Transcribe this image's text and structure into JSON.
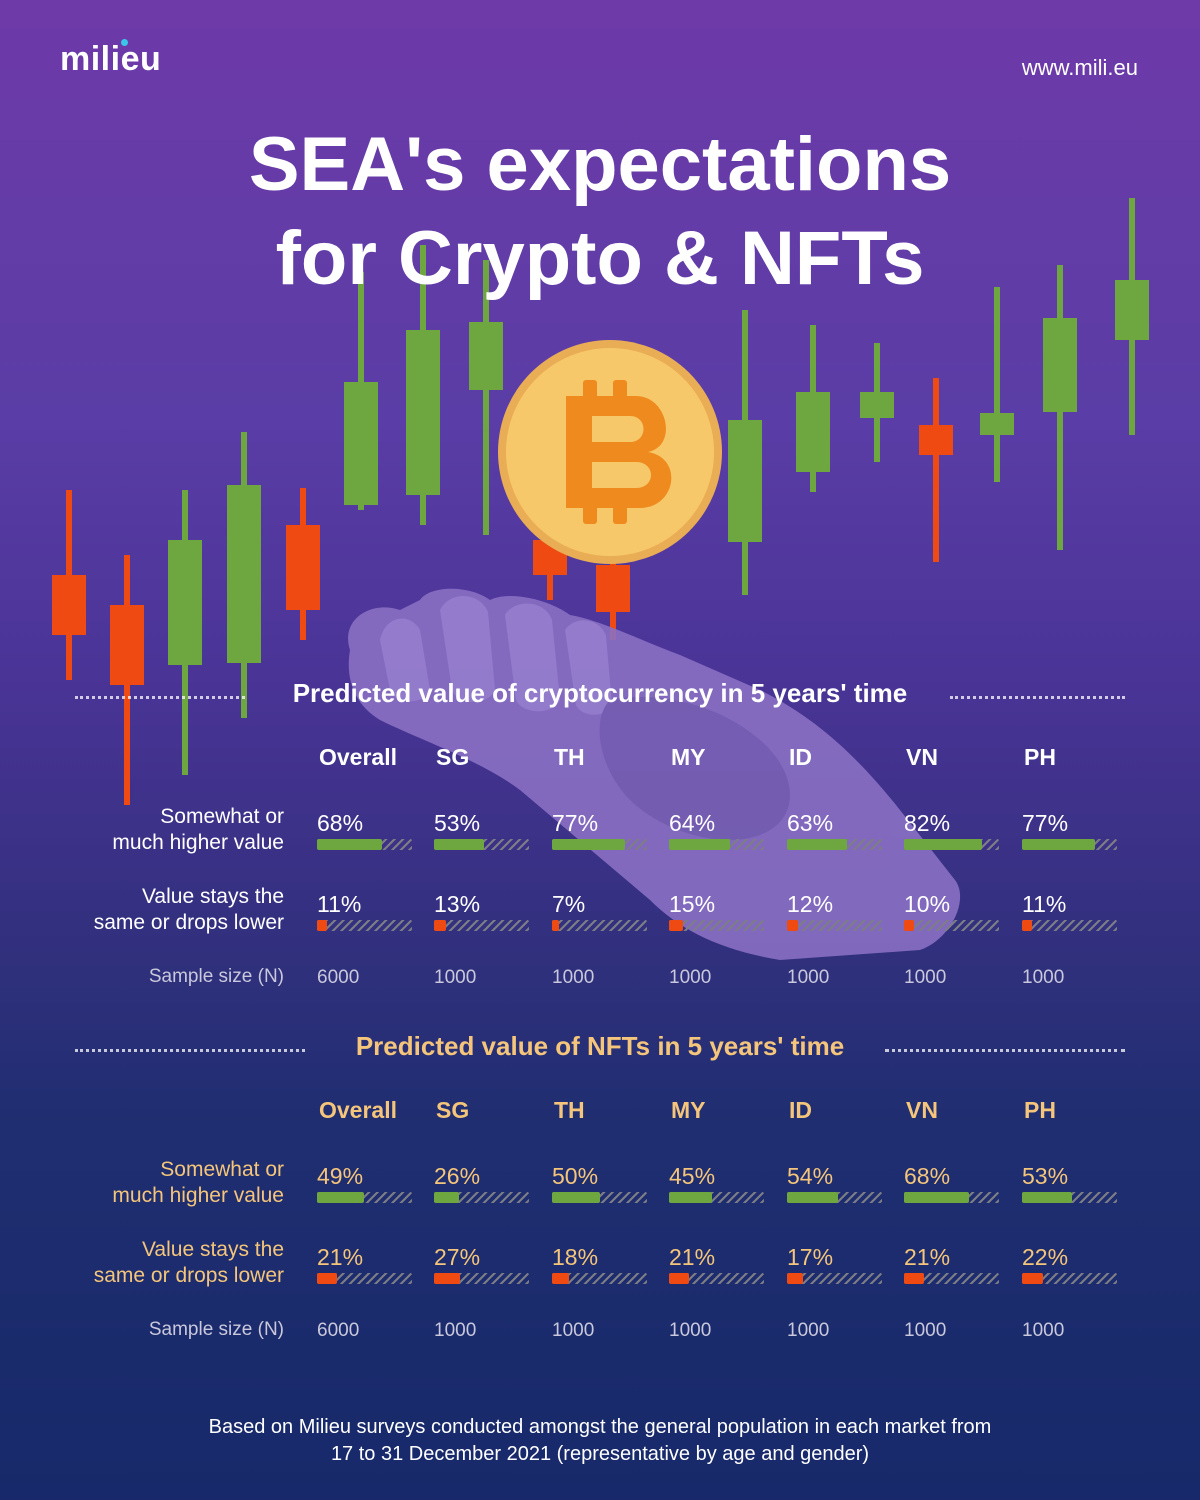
{
  "header": {
    "logo": "milieu",
    "website": "www.mili.eu",
    "title_line1": "SEA's expectations",
    "title_line2": "for Crypto & NFTs"
  },
  "colors": {
    "higher": "#6ea63f",
    "lower": "#f04a13",
    "crypto_text": "#ffffff",
    "nft_text": "#f4c57a",
    "coin": "#f7c86a",
    "coin_symbol": "#ef8a1f"
  },
  "icons": [
    "bitcoin-coin-icon",
    "hand-icon",
    "candlestick-decoration"
  ],
  "chart_data": [
    {
      "type": "table",
      "title": "Predicted value of cryptocurrency in 5 years' time",
      "categories": [
        "Overall",
        "SG",
        "TH",
        "MY",
        "ID",
        "VN",
        "PH"
      ],
      "series": [
        {
          "name": "Somewhat or much higher value",
          "values": [
            68,
            53,
            77,
            64,
            63,
            82,
            77
          ],
          "labels": [
            "68%",
            "53%",
            "77%",
            "64%",
            "63%",
            "82%",
            "77%"
          ]
        },
        {
          "name": "Value stays the same or drops lower",
          "values": [
            11,
            13,
            7,
            15,
            12,
            10,
            11
          ],
          "labels": [
            "11%",
            "13%",
            "7%",
            "15%",
            "12%",
            "10%",
            "11%"
          ]
        }
      ],
      "sample_label": "Sample size (N)",
      "sample_sizes": [
        "6000",
        "1000",
        "1000",
        "1000",
        "1000",
        "1000",
        "1000"
      ]
    },
    {
      "type": "table",
      "title": "Predicted value of NFTs in 5 years' time",
      "categories": [
        "Overall",
        "SG",
        "TH",
        "MY",
        "ID",
        "VN",
        "PH"
      ],
      "series": [
        {
          "name": "Somewhat or much higher value",
          "values": [
            49,
            26,
            50,
            45,
            54,
            68,
            53
          ],
          "labels": [
            "49%",
            "26%",
            "50%",
            "45%",
            "54%",
            "68%",
            "53%"
          ]
        },
        {
          "name": "Value stays the same or drops lower",
          "values": [
            21,
            27,
            18,
            21,
            17,
            21,
            22
          ],
          "labels": [
            "21%",
            "27%",
            "18%",
            "21%",
            "17%",
            "21%",
            "22%"
          ]
        }
      ],
      "sample_label": "Sample size (N)",
      "sample_sizes": [
        "6000",
        "1000",
        "1000",
        "1000",
        "1000",
        "1000",
        "1000"
      ]
    }
  ],
  "footnote_line1": "Based on Milieu surveys conducted amongst the general population in each market from",
  "footnote_line2": "17 to 31 December 2021 (representative by age and gender)"
}
